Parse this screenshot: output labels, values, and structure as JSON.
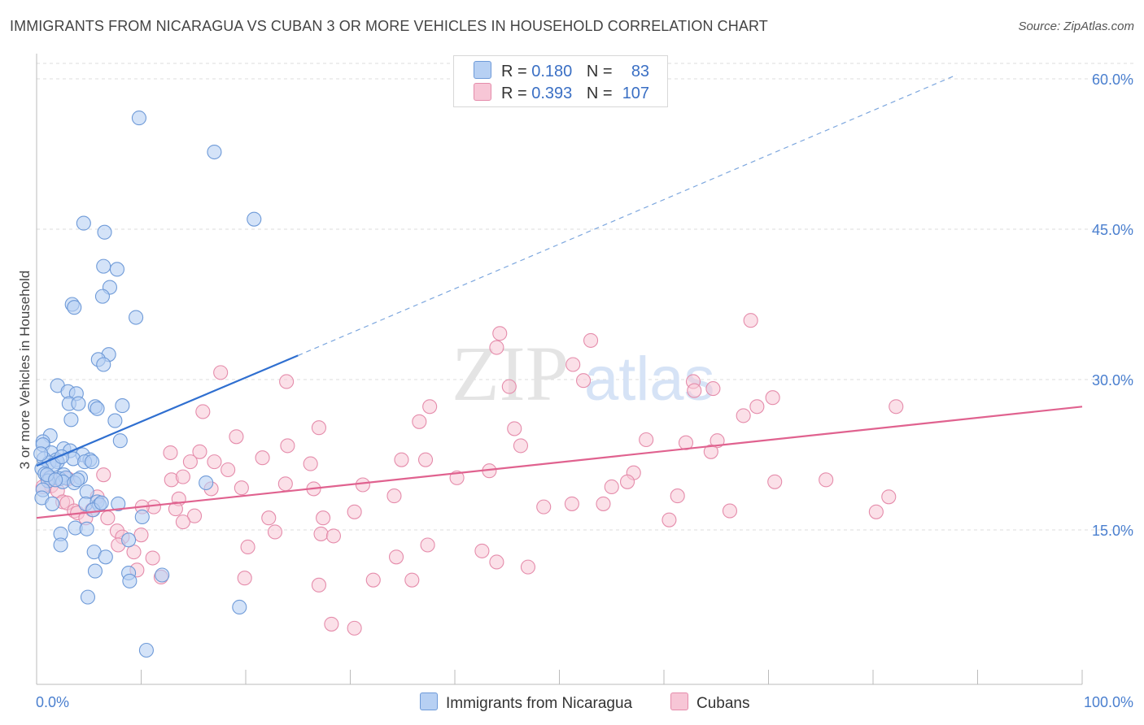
{
  "header": {
    "title": "IMMIGRANTS FROM NICARAGUA VS CUBAN 3 OR MORE VEHICLES IN HOUSEHOLD CORRELATION CHART",
    "source": "Source: ZipAtlas.com"
  },
  "legend": {
    "r_label": "R =",
    "n_label": "N =",
    "series1": {
      "r": "0.180",
      "n": "83"
    },
    "series2": {
      "r": "0.393",
      "n": "107"
    }
  },
  "bottom_legend": {
    "series1_label": "Immigrants from Nicaragua",
    "series2_label": "Cubans"
  },
  "watermark": {
    "zip": "ZIP",
    "atlas": "atlas"
  },
  "colors": {
    "series1_fill": "#b7d0f3",
    "series1_stroke": "#6e9ad8",
    "series1_line": "#2f6fd0",
    "series2_fill": "#f7c6d6",
    "series2_stroke": "#e58cab",
    "series2_line": "#e0628f",
    "tick_text": "#4a7fcf",
    "grid": "#dcdcdc"
  },
  "chart_data": {
    "type": "scatter",
    "title": "IMMIGRANTS FROM NICARAGUA VS CUBAN 3 OR MORE VEHICLES IN HOUSEHOLD CORRELATION CHART",
    "xlabel": "",
    "ylabel": "3 or more Vehicles in Household",
    "xlim": [
      0,
      100
    ],
    "ylim": [
      0,
      60
    ],
    "x_tick_labels": [
      "0.0%",
      "100.0%"
    ],
    "y_ticks": [
      15,
      30,
      45,
      60
    ],
    "y_tick_labels": [
      "15.0%",
      "30.0%",
      "45.0%",
      "60.0%"
    ],
    "grid": true,
    "legend_position": "top-center",
    "series": [
      {
        "name": "Immigrants from Nicaragua",
        "r": 0.18,
        "n": 83,
        "trend": {
          "x": [
            0,
            25
          ],
          "y": [
            21.4,
            32.4
          ],
          "dashed_to": [
            88,
            60.4
          ]
        },
        "points": [
          [
            9.8,
            56.1
          ],
          [
            17.0,
            52.7
          ],
          [
            20.8,
            46.0
          ],
          [
            4.5,
            45.6
          ],
          [
            6.5,
            44.7
          ],
          [
            6.4,
            41.3
          ],
          [
            7.7,
            41.0
          ],
          [
            7.0,
            39.2
          ],
          [
            6.3,
            38.3
          ],
          [
            3.4,
            37.5
          ],
          [
            3.6,
            37.2
          ],
          [
            9.5,
            36.2
          ],
          [
            6.9,
            32.5
          ],
          [
            5.9,
            32.0
          ],
          [
            6.4,
            31.5
          ],
          [
            2.0,
            29.4
          ],
          [
            3.0,
            28.8
          ],
          [
            3.8,
            28.6
          ],
          [
            3.1,
            27.6
          ],
          [
            4.0,
            27.6
          ],
          [
            5.6,
            27.3
          ],
          [
            5.8,
            27.1
          ],
          [
            8.2,
            27.4
          ],
          [
            3.3,
            26.0
          ],
          [
            7.5,
            25.9
          ],
          [
            1.3,
            24.4
          ],
          [
            0.6,
            23.8
          ],
          [
            0.6,
            23.5
          ],
          [
            8.0,
            23.9
          ],
          [
            2.6,
            23.1
          ],
          [
            1.4,
            22.7
          ],
          [
            3.2,
            22.9
          ],
          [
            4.4,
            22.5
          ],
          [
            0.7,
            22.1
          ],
          [
            1.9,
            22.0
          ],
          [
            3.5,
            22.1
          ],
          [
            5.1,
            22.0
          ],
          [
            4.6,
            21.8
          ],
          [
            5.3,
            21.8
          ],
          [
            1.2,
            21.7
          ],
          [
            2.0,
            21.8
          ],
          [
            1.6,
            21.5
          ],
          [
            0.5,
            21.1
          ],
          [
            0.8,
            20.6
          ],
          [
            2.6,
            20.5
          ],
          [
            1.3,
            20.2
          ],
          [
            2.2,
            20.1
          ],
          [
            2.8,
            20.2
          ],
          [
            4.2,
            20.2
          ],
          [
            1.1,
            19.9
          ],
          [
            2.5,
            19.8
          ],
          [
            3.6,
            19.7
          ],
          [
            16.2,
            19.7
          ],
          [
            0.6,
            19.0
          ],
          [
            4.8,
            18.8
          ],
          [
            0.5,
            18.2
          ],
          [
            1.5,
            17.6
          ],
          [
            4.7,
            17.6
          ],
          [
            5.8,
            17.8
          ],
          [
            7.8,
            17.6
          ],
          [
            6.0,
            17.5
          ],
          [
            5.4,
            17.0
          ],
          [
            10.1,
            16.3
          ],
          [
            3.7,
            15.2
          ],
          [
            4.8,
            15.1
          ],
          [
            2.3,
            14.6
          ],
          [
            8.8,
            14.0
          ],
          [
            2.3,
            13.5
          ],
          [
            5.5,
            12.8
          ],
          [
            6.6,
            12.3
          ],
          [
            5.6,
            10.9
          ],
          [
            8.8,
            10.7
          ],
          [
            12.0,
            10.5
          ],
          [
            8.9,
            9.9
          ],
          [
            4.9,
            8.3
          ],
          [
            19.4,
            7.3
          ],
          [
            10.5,
            3.0
          ],
          [
            1.0,
            20.5
          ],
          [
            2.4,
            22.3
          ],
          [
            3.9,
            20.0
          ],
          [
            0.4,
            22.6
          ],
          [
            1.8,
            20.0
          ],
          [
            6.2,
            17.7
          ]
        ]
      },
      {
        "name": "Cubans",
        "r": 0.393,
        "n": 107,
        "trend": {
          "x": [
            0,
            100
          ],
          "y": [
            16.2,
            27.3
          ]
        },
        "points": [
          [
            68.3,
            35.9
          ],
          [
            44.3,
            34.6
          ],
          [
            53.0,
            33.9
          ],
          [
            44.0,
            33.2
          ],
          [
            51.3,
            31.5
          ],
          [
            17.6,
            30.7
          ],
          [
            52.3,
            29.9
          ],
          [
            23.9,
            29.8
          ],
          [
            45.2,
            29.3
          ],
          [
            62.8,
            29.8
          ],
          [
            62.9,
            28.9
          ],
          [
            64.7,
            29.1
          ],
          [
            70.4,
            28.2
          ],
          [
            68.9,
            27.3
          ],
          [
            37.6,
            27.3
          ],
          [
            82.2,
            27.3
          ],
          [
            15.9,
            26.8
          ],
          [
            67.6,
            26.4
          ],
          [
            36.6,
            25.8
          ],
          [
            45.7,
            25.1
          ],
          [
            27.0,
            25.2
          ],
          [
            19.1,
            24.3
          ],
          [
            58.3,
            24.0
          ],
          [
            62.1,
            23.7
          ],
          [
            65.1,
            23.9
          ],
          [
            46.3,
            23.4
          ],
          [
            24.0,
            23.4
          ],
          [
            12.8,
            22.7
          ],
          [
            15.6,
            22.8
          ],
          [
            21.6,
            22.2
          ],
          [
            34.9,
            22.0
          ],
          [
            17.0,
            21.8
          ],
          [
            26.2,
            21.6
          ],
          [
            14.7,
            21.8
          ],
          [
            64.5,
            22.8
          ],
          [
            37.2,
            22.0
          ],
          [
            18.3,
            21.0
          ],
          [
            43.3,
            20.9
          ],
          [
            57.1,
            20.7
          ],
          [
            40.2,
            20.2
          ],
          [
            12.9,
            20.0
          ],
          [
            14.0,
            20.3
          ],
          [
            6.4,
            20.5
          ],
          [
            23.8,
            19.6
          ],
          [
            31.2,
            19.5
          ],
          [
            26.5,
            19.1
          ],
          [
            55.0,
            19.3
          ],
          [
            70.6,
            19.8
          ],
          [
            75.5,
            20.0
          ],
          [
            56.5,
            19.8
          ],
          [
            1.4,
            19.4
          ],
          [
            1.2,
            20.2
          ],
          [
            1.8,
            20.0
          ],
          [
            0.6,
            19.3
          ],
          [
            19.6,
            19.2
          ],
          [
            16.7,
            19.1
          ],
          [
            2.0,
            18.9
          ],
          [
            13.6,
            18.1
          ],
          [
            2.5,
            17.8
          ],
          [
            5.8,
            18.3
          ],
          [
            34.2,
            18.4
          ],
          [
            81.5,
            18.3
          ],
          [
            61.3,
            18.4
          ],
          [
            2.9,
            17.7
          ],
          [
            11.2,
            17.3
          ],
          [
            10.1,
            17.3
          ],
          [
            48.5,
            17.3
          ],
          [
            51.2,
            17.6
          ],
          [
            54.2,
            17.6
          ],
          [
            3.6,
            16.9
          ],
          [
            3.9,
            16.7
          ],
          [
            5.3,
            17.0
          ],
          [
            13.3,
            17.1
          ],
          [
            30.4,
            16.8
          ],
          [
            80.3,
            16.8
          ],
          [
            4.7,
            16.2
          ],
          [
            6.8,
            16.2
          ],
          [
            15.1,
            16.4
          ],
          [
            22.2,
            16.2
          ],
          [
            27.4,
            16.2
          ],
          [
            60.5,
            16.0
          ],
          [
            66.3,
            16.9
          ],
          [
            14.0,
            15.8
          ],
          [
            7.7,
            14.9
          ],
          [
            22.8,
            14.8
          ],
          [
            8.2,
            14.3
          ],
          [
            10.0,
            14.5
          ],
          [
            27.2,
            14.6
          ],
          [
            28.4,
            14.4
          ],
          [
            7.8,
            13.5
          ],
          [
            20.2,
            13.3
          ],
          [
            37.4,
            13.5
          ],
          [
            42.6,
            12.9
          ],
          [
            9.3,
            12.8
          ],
          [
            11.1,
            12.2
          ],
          [
            34.4,
            12.3
          ],
          [
            44.0,
            11.8
          ],
          [
            47.0,
            11.3
          ],
          [
            9.6,
            11.0
          ],
          [
            11.9,
            10.3
          ],
          [
            19.9,
            10.2
          ],
          [
            32.2,
            10.0
          ],
          [
            35.9,
            10.0
          ],
          [
            27.0,
            9.5
          ],
          [
            28.2,
            5.6
          ],
          [
            30.4,
            5.2
          ],
          [
            3.0,
            20.1
          ]
        ]
      }
    ]
  }
}
